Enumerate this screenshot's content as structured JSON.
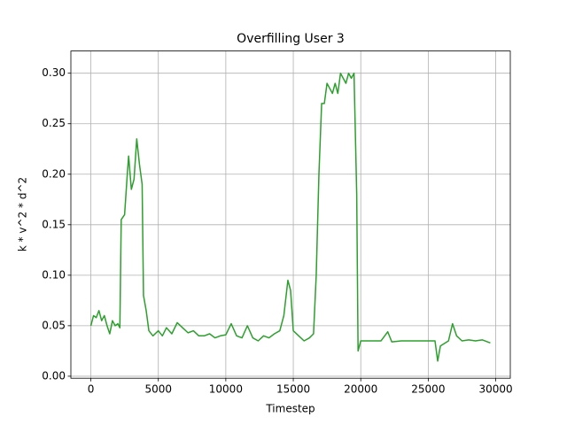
{
  "chart_data": {
    "type": "line",
    "title": "Overfilling User 3",
    "x_label": "Timestep",
    "y_label": "k * v^2 * d^2",
    "x": [
      0,
      200,
      400,
      600,
      800,
      1000,
      1200,
      1400,
      1600,
      1800,
      2000,
      2150,
      2250,
      2500,
      2700,
      2800,
      3000,
      3200,
      3400,
      3600,
      3800,
      3900,
      4100,
      4300,
      4600,
      5000,
      5300,
      5600,
      6000,
      6400,
      6800,
      7200,
      7600,
      8000,
      8400,
      8800,
      9200,
      9600,
      10000,
      10400,
      10800,
      11200,
      11600,
      12000,
      12400,
      12800,
      13200,
      13600,
      14000,
      14300,
      14600,
      14800,
      15000,
      15400,
      15800,
      16200,
      16500,
      16700,
      16900,
      17100,
      17300,
      17500,
      17700,
      17900,
      18100,
      18300,
      18500,
      18700,
      18900,
      19100,
      19300,
      19500,
      19700,
      19800,
      20000,
      20500,
      21000,
      21500,
      22000,
      22300,
      23000,
      24000,
      25000,
      25500,
      25700,
      25900,
      26500,
      26800,
      27100,
      27500,
      28000,
      28500,
      29000,
      29600
    ],
    "series": [
      {
        "name": "Overfilling User 3",
        "color": "#2ca02c",
        "values": [
          0.05,
          0.06,
          0.058,
          0.065,
          0.055,
          0.06,
          0.05,
          0.042,
          0.055,
          0.05,
          0.052,
          0.048,
          0.155,
          0.16,
          0.2,
          0.218,
          0.185,
          0.195,
          0.235,
          0.21,
          0.19,
          0.08,
          0.065,
          0.045,
          0.04,
          0.045,
          0.04,
          0.048,
          0.042,
          0.053,
          0.048,
          0.043,
          0.045,
          0.04,
          0.04,
          0.042,
          0.038,
          0.04,
          0.041,
          0.052,
          0.04,
          0.038,
          0.05,
          0.038,
          0.035,
          0.04,
          0.038,
          0.042,
          0.045,
          0.06,
          0.095,
          0.085,
          0.045,
          0.04,
          0.035,
          0.038,
          0.042,
          0.1,
          0.2,
          0.27,
          0.27,
          0.29,
          0.285,
          0.28,
          0.29,
          0.28,
          0.3,
          0.295,
          0.29,
          0.3,
          0.295,
          0.3,
          0.18,
          0.025,
          0.035,
          0.035,
          0.035,
          0.035,
          0.044,
          0.034,
          0.035,
          0.035,
          0.035,
          0.035,
          0.015,
          0.03,
          0.035,
          0.052,
          0.04,
          0.035,
          0.036,
          0.035,
          0.036,
          0.033
        ]
      }
    ],
    "xlim": [
      -1480,
      31080
    ],
    "ylim": [
      -0.002,
      0.322
    ],
    "xticks": [
      0,
      5000,
      10000,
      15000,
      20000,
      25000,
      30000
    ],
    "yticks": [
      {
        "value": 0,
        "label": "0.00"
      },
      {
        "value": 0.05,
        "label": "0.05"
      },
      {
        "value": 0.1,
        "label": "0.10"
      },
      {
        "value": 0.15,
        "label": "0.15"
      },
      {
        "value": 0.2,
        "label": "0.20"
      },
      {
        "value": 0.25,
        "label": "0.25"
      },
      {
        "value": 0.3,
        "label": "0.30"
      }
    ],
    "grid": true
  }
}
